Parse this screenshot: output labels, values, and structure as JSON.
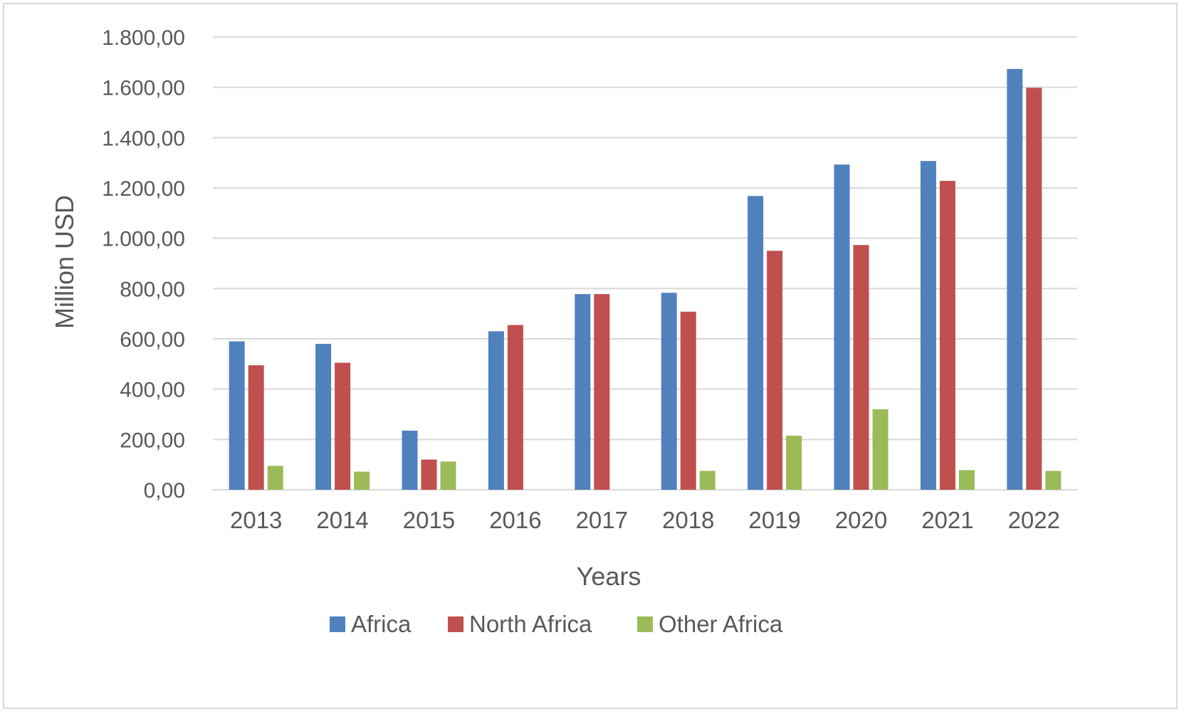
{
  "chart_data": {
    "type": "bar",
    "title": "",
    "xlabel": "Years",
    "ylabel": "Million USD",
    "ylim": [
      0,
      1800
    ],
    "yticks": [
      0,
      200,
      400,
      600,
      800,
      1000,
      1200,
      1400,
      1600,
      1800
    ],
    "ytick_labels": [
      "0,00",
      "200,00",
      "400,00",
      "600,00",
      "800,00",
      "1.000,00",
      "1.200,00",
      "1.400,00",
      "1.600,00",
      "1.800,00"
    ],
    "categories": [
      "2013",
      "2014",
      "2015",
      "2016",
      "2017",
      "2018",
      "2019",
      "2020",
      "2021",
      "2022"
    ],
    "grid": true,
    "legend_position": "bottom",
    "series": [
      {
        "name": "Africa",
        "color": "#4f81bd",
        "values": [
          590,
          580,
          235,
          630,
          778,
          783,
          1168,
          1293,
          1307,
          1673
        ]
      },
      {
        "name": "North Africa",
        "color": "#c0504d",
        "values": [
          495,
          505,
          120,
          655,
          778,
          708,
          950,
          973,
          1228,
          1598
        ]
      },
      {
        "name": "Other Africa",
        "color": "#9bbb59",
        "values": [
          95,
          72,
          112,
          0,
          0,
          75,
          215,
          320,
          78,
          75
        ]
      }
    ]
  }
}
